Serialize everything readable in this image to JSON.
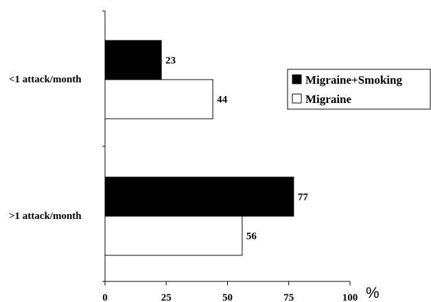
{
  "chart_data": {
    "type": "bar",
    "orientation": "horizontal",
    "categories": [
      "<1 attack/month",
      ">1 attack/month"
    ],
    "series": [
      {
        "name": "Migraine+Smoking",
        "values": [
          23,
          77
        ],
        "color": "#000000"
      },
      {
        "name": "Migraine",
        "values": [
          44,
          56
        ],
        "color": "#ffffff"
      }
    ],
    "xlim": [
      0,
      100
    ],
    "xticks": [
      0,
      25,
      50,
      75,
      100
    ],
    "xunit": "%",
    "grid": false,
    "legend_position": "right"
  }
}
